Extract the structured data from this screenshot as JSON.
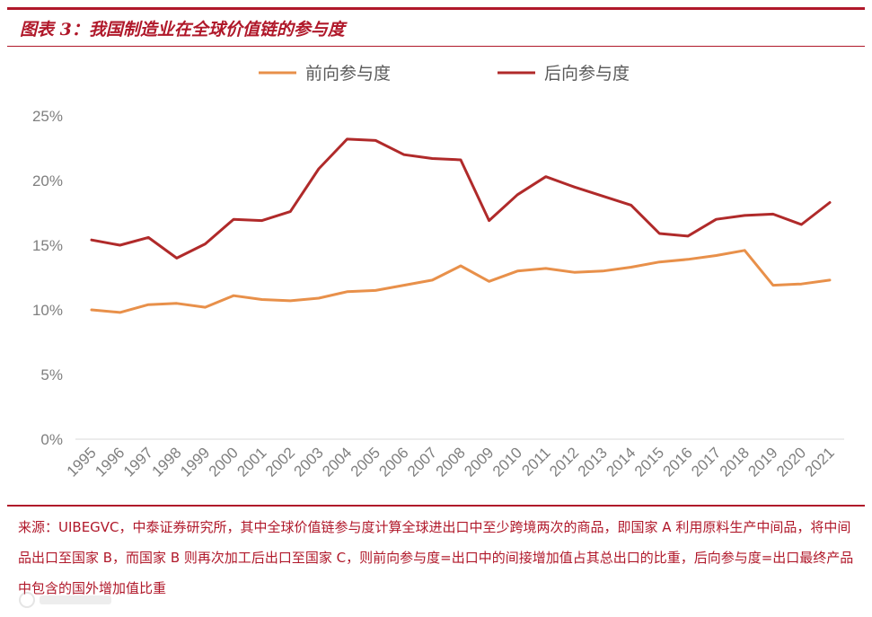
{
  "header": {
    "title": "图表 3：我国制造业在全球价值链的参与度"
  },
  "chart_data": {
    "type": "line",
    "title": "",
    "xlabel": "",
    "ylabel": "",
    "x": [
      "1995",
      "1996",
      "1997",
      "1998",
      "1999",
      "2000",
      "2001",
      "2002",
      "2003",
      "2004",
      "2005",
      "2006",
      "2007",
      "2008",
      "2009",
      "2010",
      "2011",
      "2012",
      "2013",
      "2014",
      "2015",
      "2016",
      "2017",
      "2018",
      "2019",
      "2020",
      "2021"
    ],
    "ylim": [
      0,
      25
    ],
    "yticks": [
      "0%",
      "5%",
      "10%",
      "15%",
      "20%",
      "25%"
    ],
    "ytick_values": [
      0,
      5,
      10,
      15,
      20,
      25
    ],
    "legend_position": "top",
    "grid": false,
    "series": [
      {
        "name": "前向参与度",
        "color": "#e8904a",
        "values": [
          10.0,
          9.8,
          10.4,
          10.5,
          10.2,
          11.1,
          10.8,
          10.7,
          10.9,
          11.4,
          11.5,
          11.9,
          12.3,
          13.4,
          12.2,
          13.0,
          13.2,
          12.9,
          13.0,
          13.3,
          13.7,
          13.9,
          14.2,
          14.6,
          11.9,
          12.0,
          12.3
        ]
      },
      {
        "name": "后向参与度",
        "color": "#b02a2a",
        "values": [
          15.4,
          15.0,
          15.6,
          14.0,
          15.1,
          17.0,
          16.9,
          17.6,
          20.9,
          23.2,
          23.1,
          22.0,
          21.7,
          21.6,
          16.9,
          18.9,
          20.3,
          19.5,
          18.8,
          18.1,
          15.9,
          15.7,
          17.0,
          17.3,
          17.4,
          16.6,
          18.3
        ]
      }
    ]
  },
  "source": {
    "text": "来源：UIBEGVC，中泰证券研究所，其中全球价值链参与度计算全球进出口中至少跨境两次的商品，即国家 A 利用原料生产中间品，将中间品出口至国家 B，而国家 B 则再次加工后出口至国家 C，则前向参与度=出口中的间接增加值占其总出口的比重，后向参与度=出口最终产品中包含的国外增加值比重"
  },
  "colors": {
    "accent": "#b0182a",
    "axis_text": "#7f7f7f"
  }
}
